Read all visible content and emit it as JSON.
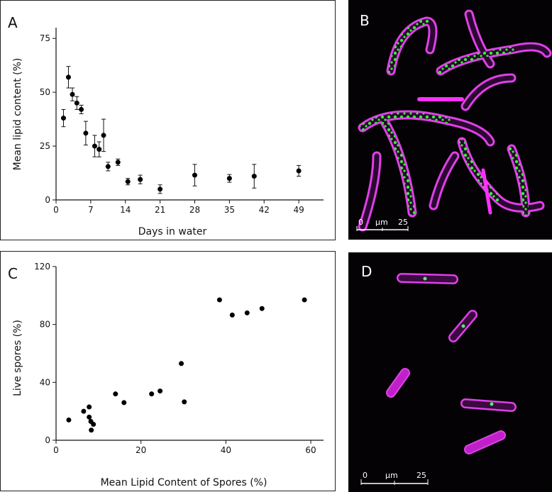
{
  "panel_labels": {
    "a": "A",
    "b": "B",
    "c": "C",
    "d": "D"
  },
  "scalebar_b": {
    "start": "0",
    "unit": "µm",
    "end": "25"
  },
  "scalebar_d": {
    "start": "0",
    "unit": "µm",
    "end": "25"
  },
  "colors": {
    "spore_outline": "#e040e8",
    "lipid_droplets": "#33ee33",
    "background_image": "#050205",
    "markers": "#000000"
  },
  "chart_data": [
    {
      "type": "scatter",
      "panel": "A",
      "xlabel": "Days in water",
      "ylabel": "Mean lipid content (%)",
      "xlim": [
        0,
        54
      ],
      "ylim": [
        0,
        80
      ],
      "xticks": [
        0,
        7,
        14,
        21,
        28,
        35,
        42,
        49
      ],
      "yticks": [
        0,
        25,
        50,
        75
      ],
      "error_bars": true,
      "points": [
        {
          "x": 1.5,
          "y": 38,
          "err": 4
        },
        {
          "x": 2.5,
          "y": 57,
          "err": 5
        },
        {
          "x": 3.3,
          "y": 49,
          "err": 3
        },
        {
          "x": 4.2,
          "y": 45,
          "err": 3
        },
        {
          "x": 5.1,
          "y": 42,
          "err": 2
        },
        {
          "x": 6.0,
          "y": 31,
          "err": 5.5
        },
        {
          "x": 7.8,
          "y": 25,
          "err": 5
        },
        {
          "x": 8.7,
          "y": 23.5,
          "err": 3.5
        },
        {
          "x": 9.6,
          "y": 30,
          "err": 7.5
        },
        {
          "x": 10.5,
          "y": 15.5,
          "err": 2
        },
        {
          "x": 12.5,
          "y": 17.5,
          "err": 1.5
        },
        {
          "x": 14.5,
          "y": 8.5,
          "err": 1.5
        },
        {
          "x": 17.0,
          "y": 9.5,
          "err": 2
        },
        {
          "x": 21.0,
          "y": 5,
          "err": 2
        },
        {
          "x": 28.0,
          "y": 11.5,
          "err": 5
        },
        {
          "x": 35.0,
          "y": 10,
          "err": 1.8
        },
        {
          "x": 40.0,
          "y": 11,
          "err": 5.5
        },
        {
          "x": 49.0,
          "y": 13.5,
          "err": 2.5
        }
      ]
    },
    {
      "type": "scatter",
      "panel": "C",
      "xlabel": "Mean Lipid Content of Spores (%)",
      "ylabel": "Live spores (%)",
      "xlim": [
        0,
        63
      ],
      "ylim": [
        0,
        120
      ],
      "xticks": [
        0,
        20,
        40,
        60
      ],
      "yticks": [
        0,
        40,
        80,
        120
      ],
      "error_bars": false,
      "points": [
        {
          "x": 3,
          "y": 14
        },
        {
          "x": 6.5,
          "y": 20
        },
        {
          "x": 7.8,
          "y": 23
        },
        {
          "x": 7.8,
          "y": 16
        },
        {
          "x": 8.2,
          "y": 13
        },
        {
          "x": 8.8,
          "y": 11
        },
        {
          "x": 8.3,
          "y": 7
        },
        {
          "x": 14,
          "y": 32
        },
        {
          "x": 16,
          "y": 26
        },
        {
          "x": 22.5,
          "y": 32
        },
        {
          "x": 24.5,
          "y": 34
        },
        {
          "x": 29.5,
          "y": 53
        },
        {
          "x": 30.2,
          "y": 26.5
        },
        {
          "x": 38.5,
          "y": 97
        },
        {
          "x": 41.5,
          "y": 86.5
        },
        {
          "x": 45,
          "y": 88
        },
        {
          "x": 48.5,
          "y": 91
        },
        {
          "x": 58.5,
          "y": 97
        }
      ]
    }
  ]
}
